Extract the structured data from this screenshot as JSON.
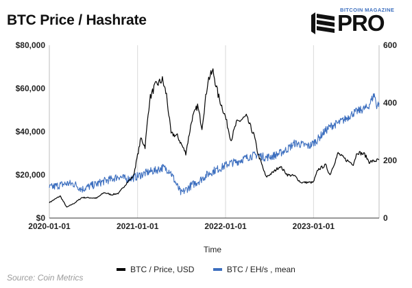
{
  "header": {
    "title": "BTC Price / Hashrate"
  },
  "brand": {
    "top_text": "BITCOIN MAGAZINE",
    "main_text": "PRO",
    "icon": "flag-logo-icon",
    "accent": "#3d6fbf"
  },
  "footer": {
    "source": "Source: Coin Metrics"
  },
  "chart_data": {
    "type": "line",
    "title": "BTC Price / Hashrate",
    "xlabel": "Time",
    "x_ticks": [
      "2020-01-01",
      "2021-01-01",
      "2022-01-01",
      "2023-01-01"
    ],
    "x_range": [
      "2020-01-01",
      "2023-09-30"
    ],
    "y_left": {
      "ticks": [
        "$0",
        "$20,000",
        "$40,000",
        "$60,000",
        "$80,000"
      ],
      "range": [
        0,
        80000
      ]
    },
    "y_right": {
      "ticks": [
        "0",
        "200",
        "400",
        "600"
      ],
      "range": [
        0,
        600
      ]
    },
    "grid": "vertical",
    "legend_position": "bottom",
    "series": [
      {
        "name": "BTC / Price, USD",
        "axis": "left",
        "color": "#000000",
        "points": [
          [
            "2020-01-01",
            7200
          ],
          [
            "2020-02-15",
            10200
          ],
          [
            "2020-03-13",
            5000
          ],
          [
            "2020-04-15",
            7000
          ],
          [
            "2020-05-15",
            9500
          ],
          [
            "2020-06-15",
            9400
          ],
          [
            "2020-07-15",
            9200
          ],
          [
            "2020-08-15",
            11800
          ],
          [
            "2020-09-15",
            10800
          ],
          [
            "2020-10-15",
            11500
          ],
          [
            "2020-11-15",
            16000
          ],
          [
            "2020-12-15",
            19500
          ],
          [
            "2021-01-01",
            29000
          ],
          [
            "2021-01-15",
            37000
          ],
          [
            "2021-02-01",
            33000
          ],
          [
            "2021-02-20",
            55000
          ],
          [
            "2021-03-13",
            61000
          ],
          [
            "2021-04-14",
            64000
          ],
          [
            "2021-05-01",
            57000
          ],
          [
            "2021-05-20",
            39000
          ],
          [
            "2021-06-15",
            38000
          ],
          [
            "2021-07-20",
            30000
          ],
          [
            "2021-08-15",
            46000
          ],
          [
            "2021-09-07",
            52000
          ],
          [
            "2021-09-25",
            42000
          ],
          [
            "2021-10-20",
            64000
          ],
          [
            "2021-11-10",
            68000
          ],
          [
            "2021-12-01",
            57000
          ],
          [
            "2021-12-31",
            47000
          ],
          [
            "2022-01-24",
            36000
          ],
          [
            "2022-02-15",
            44000
          ],
          [
            "2022-03-28",
            47000
          ],
          [
            "2022-04-30",
            38000
          ],
          [
            "2022-05-15",
            30000
          ],
          [
            "2022-06-18",
            19000
          ],
          [
            "2022-07-15",
            21000
          ],
          [
            "2022-08-15",
            24000
          ],
          [
            "2022-09-15",
            20000
          ],
          [
            "2022-10-15",
            19500
          ],
          [
            "2022-11-09",
            16500
          ],
          [
            "2022-12-31",
            16500
          ],
          [
            "2023-01-20",
            22500
          ],
          [
            "2023-02-20",
            24500
          ],
          [
            "2023-03-10",
            20000
          ],
          [
            "2023-04-13",
            30000
          ],
          [
            "2023-05-15",
            27000
          ],
          [
            "2023-06-15",
            25000
          ],
          [
            "2023-07-01",
            30500
          ],
          [
            "2023-08-01",
            29500
          ],
          [
            "2023-08-20",
            26000
          ],
          [
            "2023-09-15",
            26500
          ],
          [
            "2023-09-30",
            27000
          ]
        ]
      },
      {
        "name": "BTC / EH/s , mean",
        "axis": "right",
        "color": "#3d6fbf",
        "points": [
          [
            "2020-01-01",
            105
          ],
          [
            "2020-02-15",
            115
          ],
          [
            "2020-03-15",
            120
          ],
          [
            "2020-04-15",
            118
          ],
          [
            "2020-05-15",
            100
          ],
          [
            "2020-06-15",
            110
          ],
          [
            "2020-07-15",
            118
          ],
          [
            "2020-08-15",
            128
          ],
          [
            "2020-09-15",
            135
          ],
          [
            "2020-10-15",
            145
          ],
          [
            "2020-11-15",
            135
          ],
          [
            "2020-12-15",
            140
          ],
          [
            "2021-01-15",
            150
          ],
          [
            "2021-02-15",
            160
          ],
          [
            "2021-03-15",
            165
          ],
          [
            "2021-04-15",
            175
          ],
          [
            "2021-05-15",
            165
          ],
          [
            "2021-06-15",
            110
          ],
          [
            "2021-07-01",
            85
          ],
          [
            "2021-07-15",
            95
          ],
          [
            "2021-08-15",
            115
          ],
          [
            "2021-09-15",
            130
          ],
          [
            "2021-10-15",
            150
          ],
          [
            "2021-11-15",
            165
          ],
          [
            "2021-12-15",
            175
          ],
          [
            "2022-01-15",
            190
          ],
          [
            "2022-02-15",
            195
          ],
          [
            "2022-03-15",
            205
          ],
          [
            "2022-04-15",
            215
          ],
          [
            "2022-05-15",
            220
          ],
          [
            "2022-06-15",
            210
          ],
          [
            "2022-07-15",
            215
          ],
          [
            "2022-08-15",
            225
          ],
          [
            "2022-09-15",
            240
          ],
          [
            "2022-10-15",
            260
          ],
          [
            "2022-11-15",
            255
          ],
          [
            "2022-12-15",
            250
          ],
          [
            "2023-01-15",
            270
          ],
          [
            "2023-02-15",
            300
          ],
          [
            "2023-03-15",
            320
          ],
          [
            "2023-04-15",
            330
          ],
          [
            "2023-05-15",
            345
          ],
          [
            "2023-06-15",
            365
          ],
          [
            "2023-07-15",
            375
          ],
          [
            "2023-08-15",
            385
          ],
          [
            "2023-09-10",
            430
          ],
          [
            "2023-09-20",
            390
          ],
          [
            "2023-09-30",
            400
          ]
        ]
      }
    ]
  }
}
